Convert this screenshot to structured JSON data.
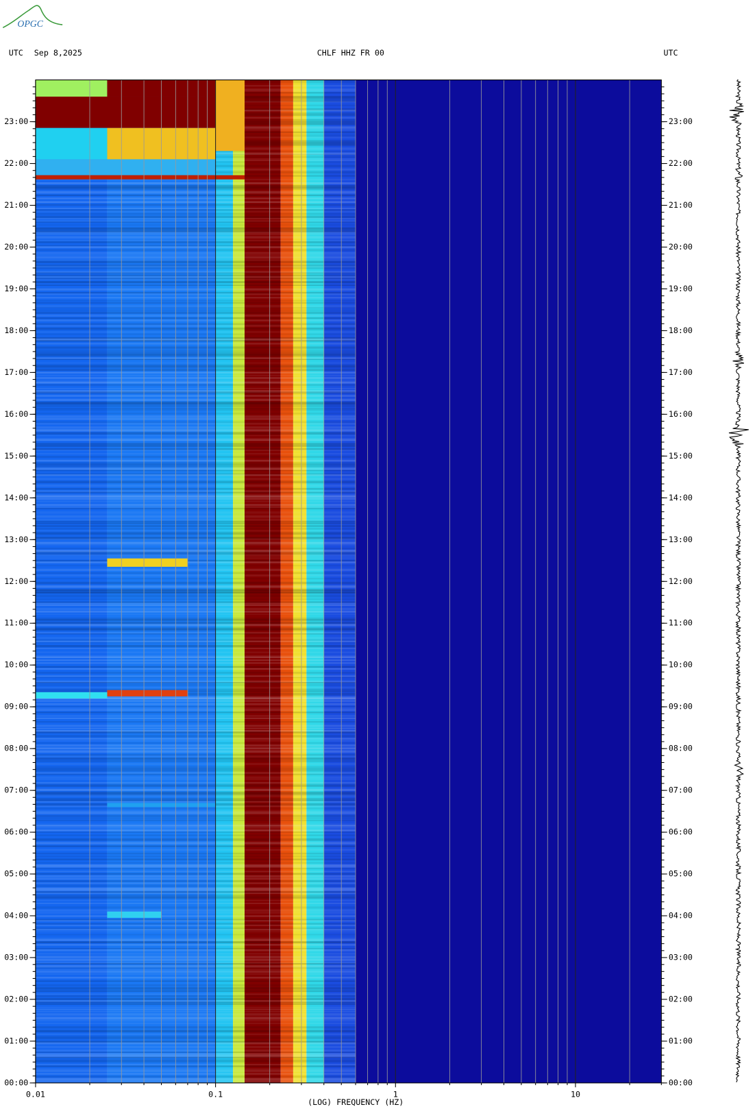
{
  "chart_data": {
    "type": "spectrogram",
    "logo": "OPGC",
    "left_zone": "UTC",
    "date": "Sep 8,2025",
    "title": "CHLF HHZ FR 00",
    "right_zone": "UTC",
    "xlabel": "(LOG) FREQUENCY (HZ)",
    "log_x": true,
    "xlim": [
      0.01,
      30
    ],
    "xticks": [
      0.01,
      0.1,
      1,
      10
    ],
    "ylim": [
      0,
      24
    ],
    "yticks": [
      {
        "value": 0,
        "label": "00:00"
      },
      {
        "value": 1,
        "label": "01:00"
      },
      {
        "value": 2,
        "label": "02:00"
      },
      {
        "value": 3,
        "label": "03:00"
      },
      {
        "value": 4,
        "label": "04:00"
      },
      {
        "value": 5,
        "label": "05:00"
      },
      {
        "value": 6,
        "label": "06:00"
      },
      {
        "value": 7,
        "label": "07:00"
      },
      {
        "value": 8,
        "label": "08:00"
      },
      {
        "value": 9,
        "label": "09:00"
      },
      {
        "value": 10,
        "label": "10:00"
      },
      {
        "value": 11,
        "label": "11:00"
      },
      {
        "value": 12,
        "label": "12:00"
      },
      {
        "value": 13,
        "label": "13:00"
      },
      {
        "value": 14,
        "label": "14:00"
      },
      {
        "value": 15,
        "label": "15:00"
      },
      {
        "value": 16,
        "label": "16:00"
      },
      {
        "value": 17,
        "label": "17:00"
      },
      {
        "value": 18,
        "label": "18:00"
      },
      {
        "value": 19,
        "label": "19:00"
      },
      {
        "value": 20,
        "label": "20:00"
      },
      {
        "value": 21,
        "label": "21:00"
      },
      {
        "value": 22,
        "label": "22:00"
      },
      {
        "value": 23,
        "label": "23:00"
      }
    ],
    "bands": [
      {
        "f": [
          0.01,
          0.025
        ],
        "color": "#1466f0"
      },
      {
        "f": [
          0.025,
          0.1
        ],
        "color": "#1a78f4"
      },
      {
        "f": [
          0.1,
          0.125
        ],
        "color": "#22c4f2"
      },
      {
        "f": [
          0.125,
          0.145
        ],
        "color": "#c8e83c"
      },
      {
        "f": [
          0.145,
          0.23
        ],
        "color": "#800000"
      },
      {
        "f": [
          0.23,
          0.27
        ],
        "color": "#e8500c"
      },
      {
        "f": [
          0.27,
          0.32
        ],
        "color": "#f0e030"
      },
      {
        "f": [
          0.32,
          0.4
        ],
        "color": "#30d8e8"
      },
      {
        "f": [
          0.4,
          0.6
        ],
        "color": "#1a4ce0"
      },
      {
        "f": [
          0.6,
          30
        ],
        "color": "#0c0c9c"
      }
    ],
    "events": [
      {
        "f": [
          0.01,
          0.025
        ],
        "t": [
          23.6,
          24
        ],
        "color": "#a0f060"
      },
      {
        "f": [
          0.025,
          0.1
        ],
        "t": [
          23.6,
          24
        ],
        "color": "#800000"
      },
      {
        "f": [
          0.01,
          0.1
        ],
        "t": [
          22.85,
          23.6
        ],
        "color": "#800000"
      },
      {
        "f": [
          0.1,
          0.145
        ],
        "t": [
          22.3,
          24
        ],
        "color": "#f0b020"
      },
      {
        "f": [
          0.01,
          0.025
        ],
        "t": [
          22.1,
          22.85
        ],
        "color": "#20d0f0"
      },
      {
        "f": [
          0.025,
          0.1
        ],
        "t": [
          22.1,
          22.85
        ],
        "color": "#f0c020"
      },
      {
        "f": [
          0.01,
          0.1
        ],
        "t": [
          21.72,
          22.1
        ],
        "color": "#30b0f0"
      },
      {
        "f": [
          0.01,
          0.145
        ],
        "t": [
          21.62,
          21.72
        ],
        "color": "#c02000"
      },
      {
        "f": [
          0.025,
          0.07
        ],
        "t": [
          12.35,
          12.55
        ],
        "color": "#f0d020"
      },
      {
        "f": [
          0.025,
          0.07
        ],
        "t": [
          9.25,
          9.4
        ],
        "color": "#e04010"
      },
      {
        "f": [
          0.01,
          0.025
        ],
        "t": [
          9.2,
          9.35
        ],
        "color": "#30e0f0"
      },
      {
        "f": [
          0.025,
          0.05
        ],
        "t": [
          3.95,
          4.1
        ],
        "color": "#30d0f0"
      },
      {
        "f": [
          0.025,
          0.1
        ],
        "t": [
          6.6,
          6.7
        ],
        "color": "#20a0f0"
      }
    ]
  }
}
